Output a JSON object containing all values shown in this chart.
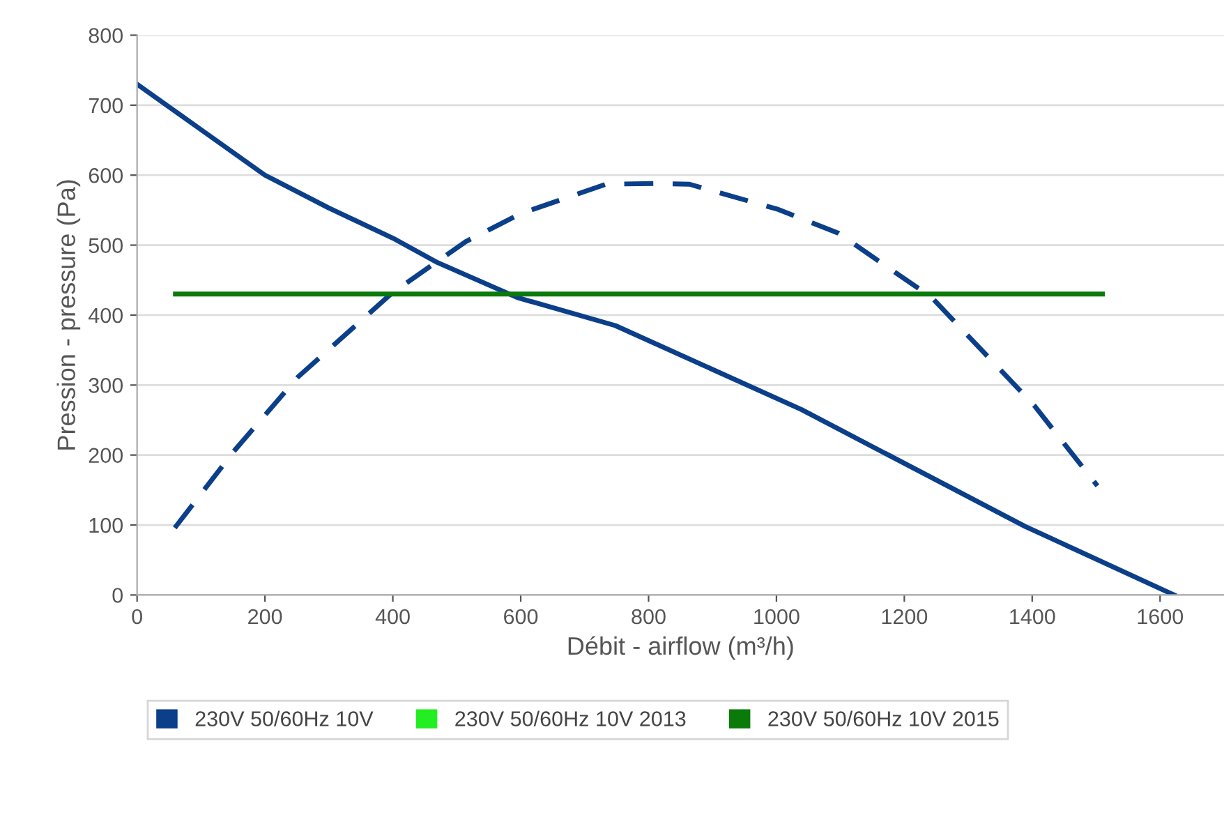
{
  "chart_data": {
    "type": "line",
    "xlabel": "Débit - airflow (m³/h)",
    "ylabel": "Pression - pressure (Pa)",
    "xlim": [
      0,
      1700
    ],
    "xticks": [
      0,
      200,
      400,
      600,
      800,
      1000,
      1200,
      1400,
      1600
    ],
    "ylim": [
      0,
      800
    ],
    "yticks": [
      0,
      100,
      200,
      300,
      400,
      500,
      600,
      700,
      800
    ],
    "grid": "y",
    "legend": "bottom",
    "marker": "none",
    "series": [
      {
        "name": "230V 50/60Hz 10V",
        "color": "#0b3f8a",
        "line_style": "solid",
        "x": [
          0,
          100,
          200,
          300,
          400,
          470,
          595,
          748,
          1039,
          1389,
          1622
        ],
        "values": [
          730,
          665,
          600,
          553,
          510,
          475,
          425,
          385,
          265,
          98,
          0
        ]
      },
      {
        "color": "#0b3f8a",
        "line_style": "dashed",
        "x": [
          59,
          151,
          251,
          398,
          514,
          600,
          733,
          810,
          864,
          1003,
          1097,
          1243,
          1403,
          1502
        ],
        "values": [
          96,
          205,
          311,
          431,
          505,
          545,
          587,
          588,
          587,
          551,
          517,
          425,
          271,
          156
        ]
      },
      {
        "name": "230V 50/60Hz 10V 2013",
        "color": "#22ee22",
        "line_style": "solid"
      },
      {
        "name": "230V 50/60Hz 10V 2015",
        "color": "#0a7a0a",
        "line_style": "solid",
        "x": [
          60,
          1510
        ],
        "values": [
          430,
          430
        ]
      }
    ]
  }
}
